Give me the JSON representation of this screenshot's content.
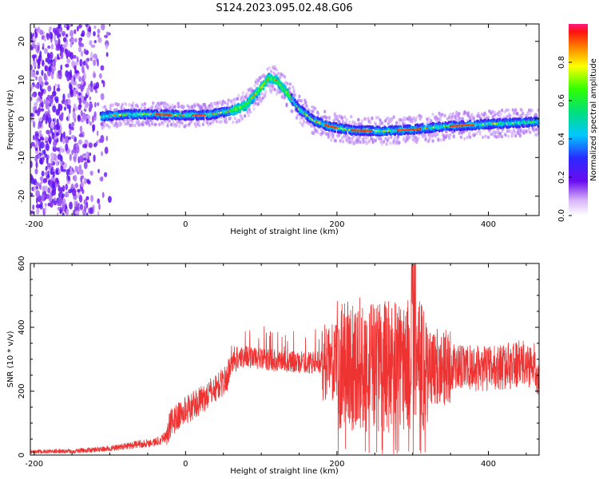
{
  "title": "S124.2023.095.02.48.G06",
  "chart_data": [
    {
      "type": "heatmap",
      "title": "S124.2023.095.02.48.G06",
      "xlabel": "Height of straight line (km)",
      "ylabel": "Frequency (Hz)",
      "xlim": [
        -205,
        467
      ],
      "ylim": [
        -25,
        24.5
      ],
      "xticks": [
        -200,
        0,
        200,
        400
      ],
      "yticks": [
        -20,
        -10,
        0,
        10,
        20
      ],
      "colorbar": {
        "label": "Normalized spectral amplitude",
        "range": [
          0,
          1
        ],
        "ticks": [
          "0.0",
          "0.2",
          "0.4",
          "0.6",
          "0.8"
        ],
        "tick_values": [
          0,
          0.2,
          0.4,
          0.6,
          0.8
        ]
      },
      "ridge": {
        "x_km": [
          -110,
          -90,
          -50,
          0,
          30,
          60,
          80,
          100,
          110,
          120,
          135,
          150,
          170,
          190,
          220,
          260,
          300,
          340,
          380,
          420,
          467
        ],
        "freq_hz": [
          0.5,
          1.0,
          1.2,
          0.9,
          1.0,
          2.0,
          3.5,
          8.0,
          10.5,
          10.0,
          6.5,
          2.5,
          -0.5,
          -2.0,
          -3.0,
          -3.2,
          -2.8,
          -2.0,
          -1.6,
          -1.2,
          -0.8
        ]
      },
      "noise_region_km": [
        -205,
        -100
      ]
    },
    {
      "type": "line",
      "xlabel": "Height of straight line (km)",
      "ylabel": "SNR (10 * v/v)",
      "xlim": [
        -205,
        467
      ],
      "ylim": [
        0,
        600
      ],
      "xticks": [
        -200,
        0,
        200,
        400
      ],
      "yticks": [
        0,
        200,
        400,
        600
      ],
      "series_color": "#ee3333",
      "envelope": {
        "x_km": [
          -205,
          -150,
          -100,
          -60,
          -40,
          -25,
          -20,
          0,
          20,
          40,
          55,
          60,
          80,
          100,
          150,
          200,
          250,
          300,
          350,
          400,
          440,
          460,
          467
        ],
        "snr": [
          10,
          12,
          20,
          35,
          40,
          60,
          100,
          140,
          170,
          210,
          240,
          300,
          310,
          300,
          290,
          290,
          280,
          280,
          275,
          270,
          285,
          280,
          250
        ]
      },
      "spike_zone_km": [
        180,
        350
      ]
    }
  ]
}
